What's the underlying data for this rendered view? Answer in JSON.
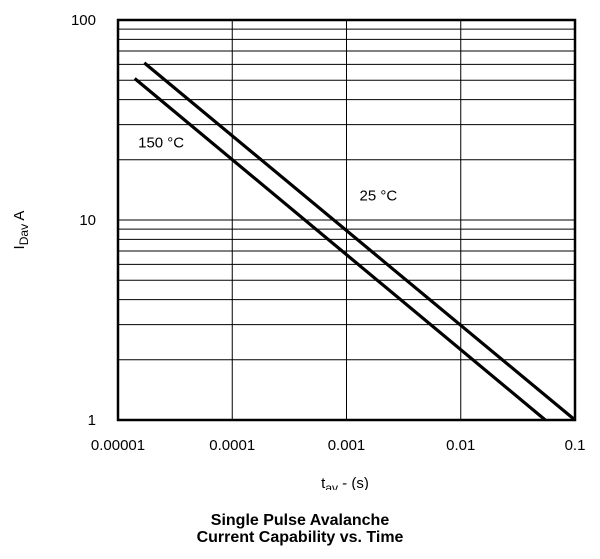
{
  "chart_data": {
    "type": "line",
    "title": "Single Pulse Avalanche",
    "subtitle": "Current Capability vs. Time",
    "xlabel": {
      "main": "t",
      "sub": "av",
      "suffix": " - (s)"
    },
    "ylabel": {
      "main": "I",
      "sub": "Dav",
      "suffix": " A"
    },
    "x_scale": "log",
    "y_scale": "log",
    "xlim": [
      1e-05,
      0.1
    ],
    "ylim": [
      1,
      100
    ],
    "grid": true,
    "x_ticks": [
      {
        "value": 1e-05,
        "label": "0.00001"
      },
      {
        "value": 0.0001,
        "label": "0.0001"
      },
      {
        "value": 0.001,
        "label": "0.001"
      },
      {
        "value": 0.01,
        "label": "0.01"
      },
      {
        "value": 0.1,
        "label": "0.1"
      }
    ],
    "y_ticks": [
      {
        "value": 1,
        "label": "1"
      },
      {
        "value": 10,
        "label": "10"
      },
      {
        "value": 100,
        "label": "100"
      }
    ],
    "series": [
      {
        "name": "150 °C",
        "x": [
          1.4e-05,
          0.055
        ],
        "y": [
          51,
          1.0
        ]
      },
      {
        "name": "25 °C",
        "x": [
          1.7e-05,
          0.1
        ],
        "y": [
          61,
          1.0
        ]
      }
    ],
    "annotations": [
      {
        "text": "150 °C",
        "x": 1.5e-05,
        "y": 23
      },
      {
        "text": "25 °C",
        "x": 0.0013,
        "y": 12.5
      }
    ]
  }
}
